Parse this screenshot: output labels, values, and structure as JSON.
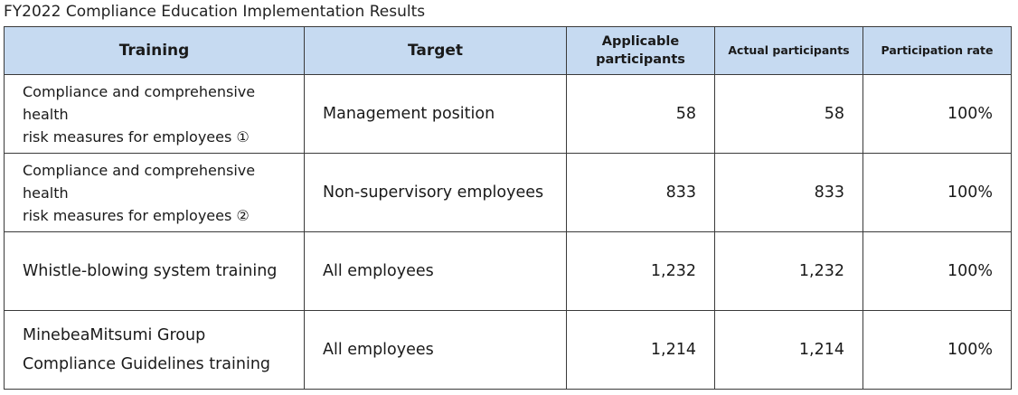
{
  "caption": "FY2022 Compliance Education Implementation Results",
  "headers": {
    "training": "Training",
    "target": "Target",
    "applicable_line1": "Applicable",
    "applicable_line2": "participants",
    "actual": "Actual participants",
    "rate": "Participation rate"
  },
  "rows": [
    {
      "training_line1": "Compliance and comprehensive health",
      "training_line2": "risk measures for employees ①",
      "target": "Management position",
      "applicable": "58",
      "actual": "58",
      "rate": "100%"
    },
    {
      "training_line1": "Compliance and comprehensive health",
      "training_line2": "risk measures for employees ②",
      "target": "Non-supervisory employees",
      "applicable": "833",
      "actual": "833",
      "rate": "100%"
    },
    {
      "training_line1": "Whistle-blowing system training",
      "training_line2": "",
      "target": "All employees",
      "applicable": "1,232",
      "actual": "1,232",
      "rate": "100%"
    },
    {
      "training_line1": "MinebeaMitsumi Group",
      "training_line2": "Compliance Guidelines training",
      "target": "All employees",
      "applicable": "1,214",
      "actual": "1,214",
      "rate": "100%"
    }
  ]
}
